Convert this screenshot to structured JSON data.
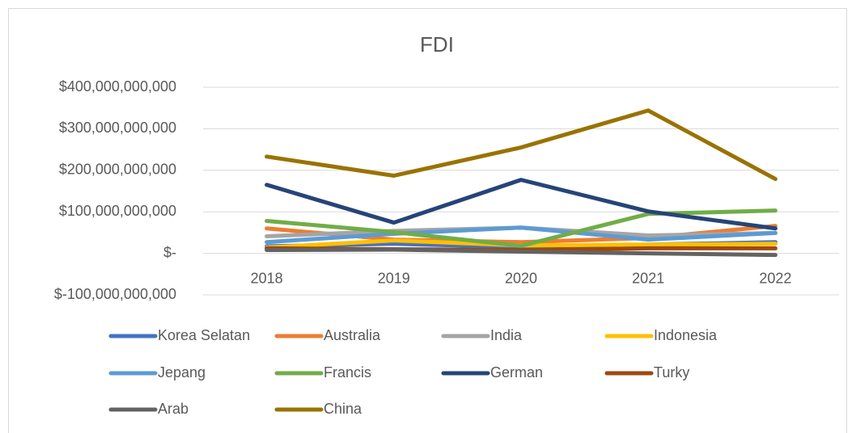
{
  "chart_data": {
    "type": "line",
    "title": "FDI",
    "categories": [
      "2018",
      "2019",
      "2020",
      "2021",
      "2022"
    ],
    "series": [
      {
        "name": "Korea Selatan",
        "color": "#4472c4",
        "values": [
          17000000000,
          23000000000,
          15000000000,
          21000000000,
          27000000000
        ]
      },
      {
        "name": "Australia",
        "color": "#ed7d31",
        "values": [
          60000000000,
          33000000000,
          27000000000,
          37000000000,
          66000000000
        ]
      },
      {
        "name": "India",
        "color": "#a5a5a5",
        "values": [
          41000000000,
          54000000000,
          62000000000,
          43000000000,
          49000000000
        ]
      },
      {
        "name": "Indonesia",
        "color": "#ffc000",
        "values": [
          14000000000,
          31000000000,
          19000000000,
          21000000000,
          23000000000
        ]
      },
      {
        "name": "Jepang",
        "color": "#5b9bd5",
        "values": [
          27000000000,
          47000000000,
          62000000000,
          33000000000,
          49000000000
        ]
      },
      {
        "name": "Francis",
        "color": "#70ad47",
        "values": [
          78000000000,
          51000000000,
          18000000000,
          95000000000,
          103000000000
        ]
      },
      {
        "name": "German",
        "color": "#264478",
        "values": [
          165000000000,
          74000000000,
          177000000000,
          101000000000,
          60000000000
        ]
      },
      {
        "name": "Turky",
        "color": "#9e480e",
        "values": [
          12000000000,
          10000000000,
          8000000000,
          12000000000,
          12000000000
        ]
      },
      {
        "name": "Arab",
        "color": "#636363",
        "values": [
          8000000000,
          9000000000,
          4000000000,
          0,
          -4000000000
        ]
      },
      {
        "name": "China",
        "color": "#997300",
        "values": [
          233000000000,
          187000000000,
          255000000000,
          344000000000,
          179000000000
        ]
      }
    ],
    "ylim": [
      -100000000000,
      400000000000
    ],
    "yticks": [
      {
        "value": -100000000000,
        "label": "$-100,000,000,000"
      },
      {
        "value": 0,
        "label": "$-"
      },
      {
        "value": 100000000000,
        "label": "$100,000,000,000"
      },
      {
        "value": 200000000000,
        "label": "$200,000,000,000"
      },
      {
        "value": 300000000000,
        "label": "$300,000,000,000"
      },
      {
        "value": 400000000000,
        "label": "$400,000,000,000"
      }
    ],
    "grid": true,
    "legend": "bottom"
  }
}
